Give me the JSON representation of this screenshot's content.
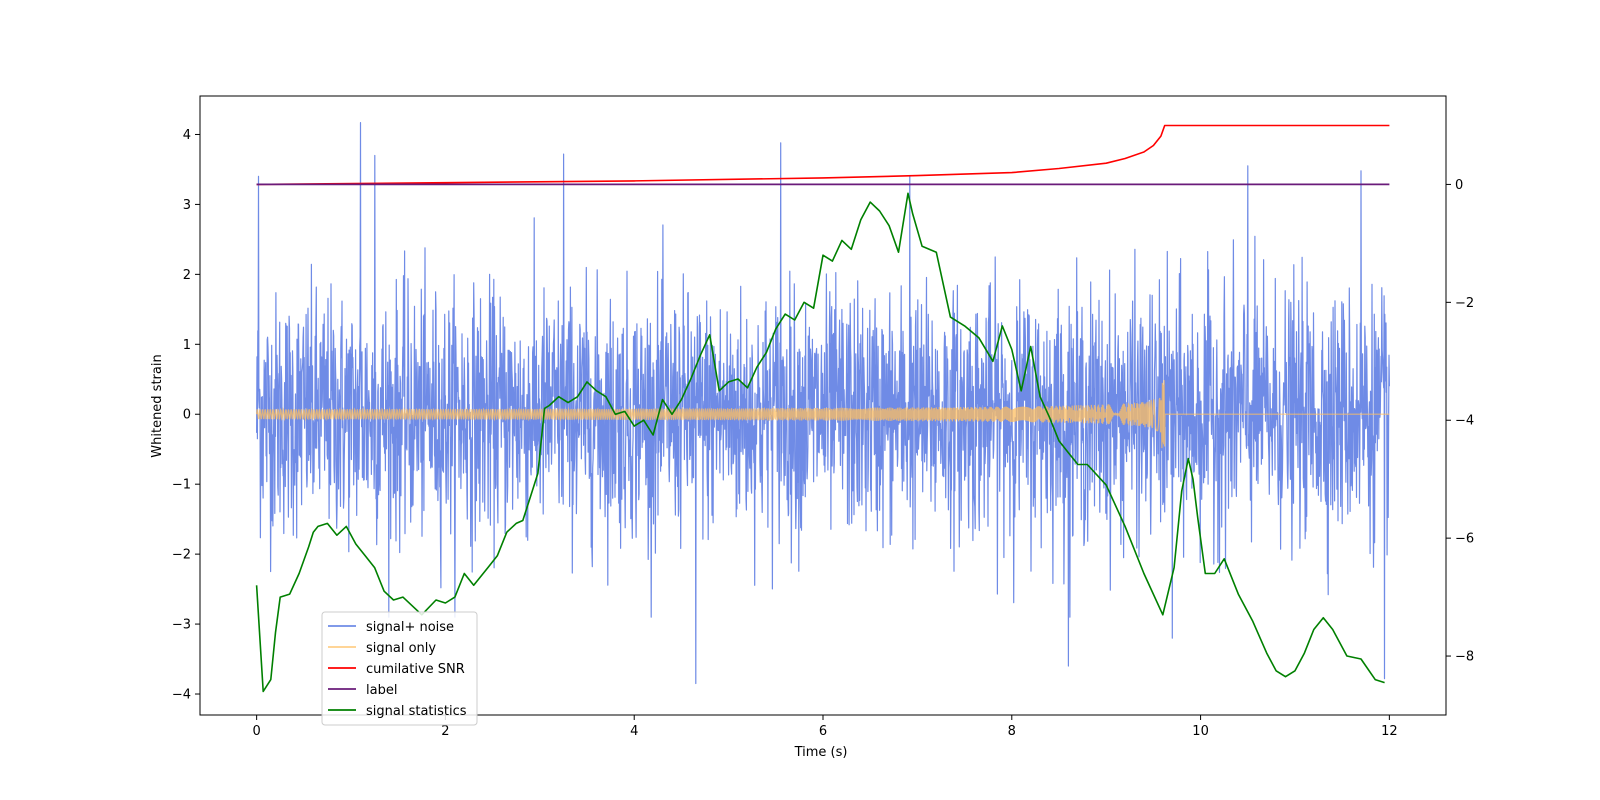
{
  "chart_data": {
    "type": "line",
    "xlabel": "Time (s)",
    "ylabel": "Whitened strain",
    "xlim": [
      -0.6,
      12.6
    ],
    "ylim": [
      -4.3,
      4.55
    ],
    "y2lim": [
      -9.0,
      1.5
    ],
    "x_ticks": [
      0,
      2,
      4,
      6,
      8,
      10,
      12
    ],
    "y_ticks": [
      -4,
      -3,
      -2,
      -1,
      0,
      1,
      2,
      3,
      4
    ],
    "y2_ticks": [
      -8,
      -6,
      -4,
      -2,
      0
    ],
    "grid": false,
    "legend_position": "lower-left",
    "series": [
      {
        "name": "signal+ noise",
        "color": "#6f8be6",
        "axis": "left",
        "t_range": [
          0,
          12
        ],
        "amplitude_typical": 1.5,
        "spike_times": [
          0.02,
          1.1,
          1.25,
          3.25,
          4.65,
          5.55,
          6.92,
          8.6,
          9.7,
          10.5,
          11.7,
          11.95
        ],
        "spike_values": [
          3.4,
          4.17,
          3.7,
          3.72,
          -3.85,
          3.88,
          3.4,
          -3.6,
          -3.2,
          3.55,
          3.48,
          -3.78
        ]
      },
      {
        "name": "signal only",
        "color": "#ffbf60",
        "axis": "left",
        "t_range": [
          0,
          12
        ],
        "merger_time": 9.62,
        "peak_amplitude": 0.5
      },
      {
        "name": "cumilative SNR",
        "color": "#ff0000",
        "axis": "right",
        "x": [
          0,
          2,
          4,
          6,
          7,
          8,
          8.5,
          9,
          9.2,
          9.4,
          9.5,
          9.58,
          9.62,
          12
        ],
        "y": [
          0.0,
          0.03,
          0.06,
          0.11,
          0.15,
          0.2,
          0.27,
          0.36,
          0.44,
          0.55,
          0.66,
          0.82,
          1.0,
          1.0
        ]
      },
      {
        "name": "label",
        "color": "#6a1b7a",
        "axis": "right",
        "x": [
          0,
          12
        ],
        "y": [
          0,
          0
        ]
      },
      {
        "name": "signal statistics",
        "color": "#008000",
        "axis": "right",
        "x": [
          0,
          0.07,
          0.15,
          0.2,
          0.25,
          0.35,
          0.45,
          0.55,
          0.6,
          0.65,
          0.75,
          0.85,
          0.95,
          1.05,
          1.15,
          1.25,
          1.35,
          1.45,
          1.55,
          1.75,
          1.9,
          2.0,
          2.1,
          2.2,
          2.3,
          2.45,
          2.55,
          2.65,
          2.75,
          2.82,
          2.9,
          2.98,
          3.05,
          3.1,
          3.2,
          3.3,
          3.4,
          3.5,
          3.6,
          3.7,
          3.8,
          3.9,
          4.0,
          4.1,
          4.2,
          4.3,
          4.4,
          4.5,
          4.6,
          4.7,
          4.8,
          4.9,
          5.0,
          5.1,
          5.2,
          5.3,
          5.4,
          5.5,
          5.6,
          5.7,
          5.8,
          5.9,
          6.0,
          6.1,
          6.2,
          6.3,
          6.4,
          6.5,
          6.6,
          6.7,
          6.8,
          6.9,
          6.95,
          7.05,
          7.2,
          7.35,
          7.5,
          7.65,
          7.8,
          7.9,
          8.0,
          8.1,
          8.2,
          8.3,
          8.4,
          8.5,
          8.6,
          8.7,
          8.8,
          9.0,
          9.2,
          9.4,
          9.6,
          9.72,
          9.8,
          9.87,
          9.92,
          9.97,
          10.05,
          10.15,
          10.25,
          10.4,
          10.55,
          10.7,
          10.8,
          10.9,
          11.0,
          11.1,
          11.2,
          11.3,
          11.4,
          11.55,
          11.7,
          11.85,
          11.95
        ],
        "y": [
          -6.8,
          -8.6,
          -8.4,
          -7.6,
          -7.0,
          -6.95,
          -6.6,
          -6.15,
          -5.9,
          -5.8,
          -5.75,
          -5.95,
          -5.8,
          -6.1,
          -6.3,
          -6.5,
          -6.9,
          -7.05,
          -7.0,
          -7.3,
          -7.05,
          -7.1,
          -7.0,
          -6.6,
          -6.8,
          -6.5,
          -6.3,
          -5.9,
          -5.75,
          -5.7,
          -5.3,
          -4.9,
          -3.8,
          -3.75,
          -3.6,
          -3.7,
          -3.6,
          -3.35,
          -3.5,
          -3.6,
          -3.9,
          -3.85,
          -4.1,
          -4.0,
          -4.25,
          -3.65,
          -3.9,
          -3.65,
          -3.3,
          -2.9,
          -2.55,
          -3.5,
          -3.35,
          -3.3,
          -3.45,
          -3.1,
          -2.85,
          -2.45,
          -2.2,
          -2.3,
          -2.0,
          -2.1,
          -1.2,
          -1.3,
          -0.95,
          -1.1,
          -0.6,
          -0.3,
          -0.45,
          -0.7,
          -1.15,
          -0.15,
          -0.5,
          -1.05,
          -1.15,
          -2.25,
          -2.4,
          -2.6,
          -3.0,
          -2.4,
          -2.8,
          -3.5,
          -2.75,
          -3.6,
          -3.95,
          -4.35,
          -4.55,
          -4.75,
          -4.75,
          -5.1,
          -5.8,
          -6.6,
          -7.3,
          -6.5,
          -5.2,
          -4.65,
          -5.0,
          -5.65,
          -6.6,
          -6.6,
          -6.35,
          -6.95,
          -7.4,
          -7.95,
          -8.25,
          -8.35,
          -8.25,
          -7.95,
          -7.55,
          -7.35,
          -7.55,
          -8.0,
          -8.05,
          -8.4,
          -8.45
        ]
      }
    ]
  }
}
